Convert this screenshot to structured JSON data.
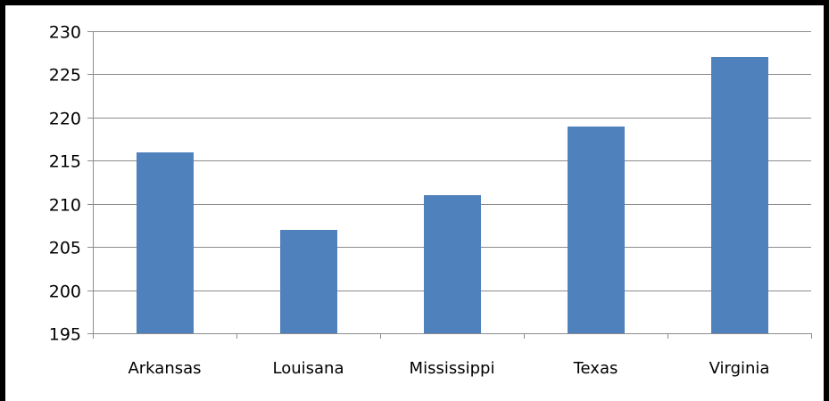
{
  "chart_data": {
    "type": "bar",
    "title": "",
    "xlabel": "",
    "ylabel": "",
    "categories": [
      "Arkansas",
      "Louisana",
      "Mississippi",
      "Texas",
      "Virginia"
    ],
    "values": [
      216,
      207,
      211,
      219,
      227
    ],
    "ylim": [
      195,
      230
    ],
    "yticks": [
      195,
      200,
      205,
      210,
      215,
      220,
      225,
      230
    ],
    "grid": true,
    "legend": "none",
    "bar_color": "#4f81bd"
  }
}
